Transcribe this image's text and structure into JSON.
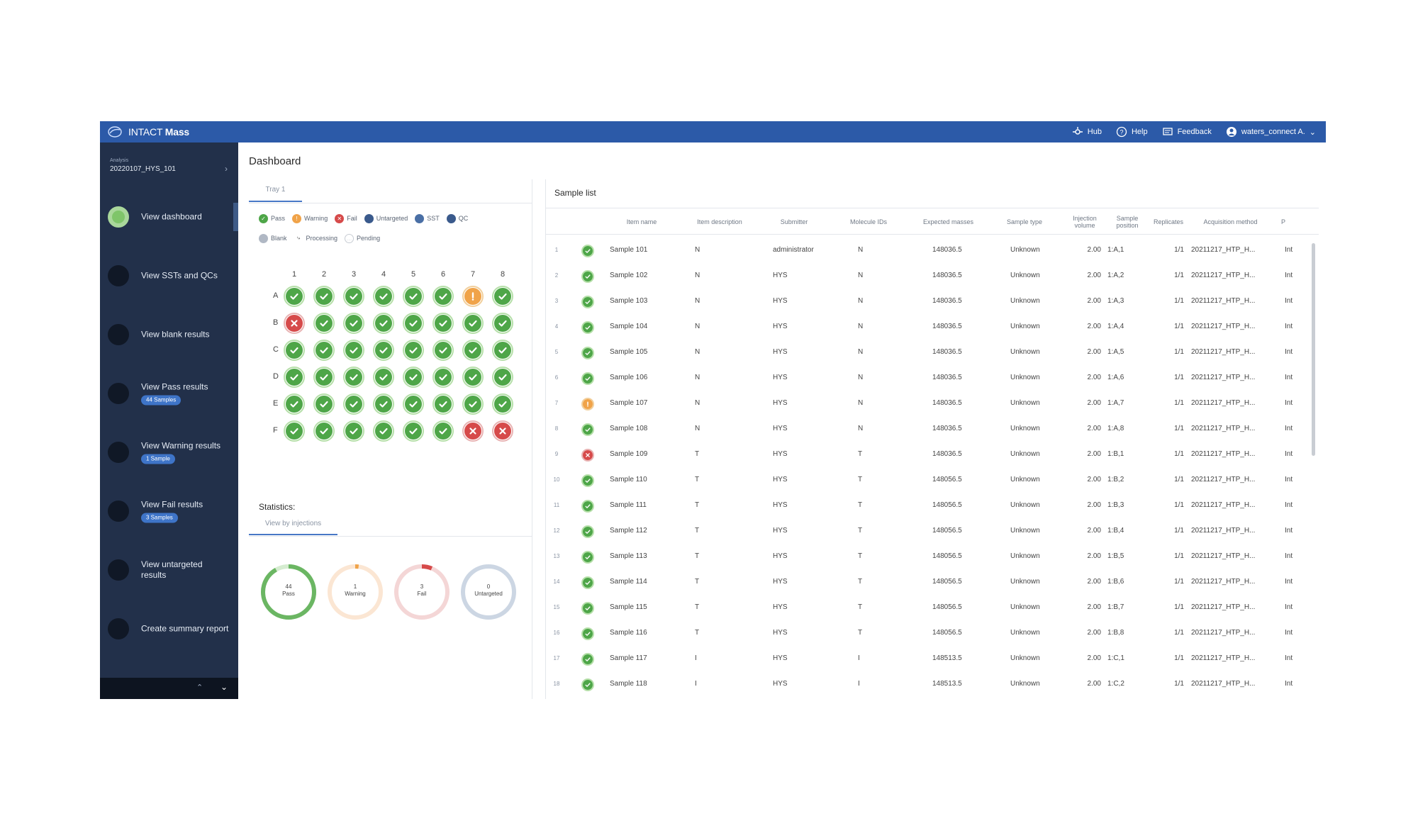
{
  "topbar": {
    "brand_light": "INTACT",
    "brand_bold": "Mass",
    "hub": "Hub",
    "help": "Help",
    "feedback": "Feedback",
    "user": "waters_connect A."
  },
  "sidebar": {
    "analysis_label": "Analysis",
    "analysis_name": "20220107_HYS_101",
    "items": [
      {
        "label": "View dashboard",
        "badge": ""
      },
      {
        "label": "View SSTs and QCs",
        "badge": ""
      },
      {
        "label": "View blank results",
        "badge": ""
      },
      {
        "label": "View Pass results",
        "badge": "44 Samples"
      },
      {
        "label": "View Warning results",
        "badge": "1 Sample"
      },
      {
        "label": "View Fail results",
        "badge": "3 Samples"
      },
      {
        "label": "View untargeted results",
        "badge": ""
      },
      {
        "label": "Create summary report",
        "badge": ""
      }
    ]
  },
  "dashboard": {
    "title": "Dashboard",
    "tray_tab": "Tray 1",
    "legend": [
      {
        "label": "Pass",
        "icon": "check-icon",
        "color": "#4ea648"
      },
      {
        "label": "Warning",
        "icon": "exclamation-icon",
        "color": "#f0a349"
      },
      {
        "label": "Fail",
        "icon": "cross-icon",
        "color": "#d64a4a"
      },
      {
        "label": "Untargeted",
        "icon": "circle-icon",
        "color": "#3a5a8c"
      },
      {
        "label": "SST",
        "icon": "sst-icon",
        "color": "#4a6fa5"
      },
      {
        "label": "QC",
        "icon": "qc-icon",
        "color": "#3a5a8c"
      },
      {
        "label": "Blank",
        "icon": "blank-icon",
        "color": "#b0b8c4"
      },
      {
        "label": "Processing",
        "icon": "spinner-icon",
        "color": "#555555"
      },
      {
        "label": "Pending",
        "icon": "pending-icon",
        "color": "#c7ccd3"
      }
    ],
    "plate": {
      "columns": [
        "1",
        "2",
        "3",
        "4",
        "5",
        "6",
        "7",
        "8"
      ],
      "rows": [
        "A",
        "B",
        "C",
        "D",
        "E",
        "F"
      ],
      "wells": [
        [
          "pass",
          "pass",
          "pass",
          "pass",
          "pass",
          "pass",
          "warn",
          "pass"
        ],
        [
          "fail",
          "pass",
          "pass",
          "pass",
          "pass",
          "pass",
          "pass",
          "pass"
        ],
        [
          "pass",
          "pass",
          "pass",
          "pass",
          "pass",
          "pass",
          "pass",
          "pass"
        ],
        [
          "pass",
          "pass",
          "pass",
          "pass",
          "pass",
          "pass",
          "pass",
          "pass"
        ],
        [
          "pass",
          "pass",
          "pass",
          "pass",
          "pass",
          "pass",
          "pass",
          "pass"
        ],
        [
          "pass",
          "pass",
          "pass",
          "pass",
          "pass",
          "pass",
          "fail",
          "fail"
        ]
      ]
    },
    "statistics_title": "Statistics:",
    "stats_tab": "View by injections",
    "donuts": [
      {
        "count": "44",
        "label": "Pass",
        "fraction": 0.917,
        "color": "#6bb663",
        "track": "#d5ecd0"
      },
      {
        "count": "1",
        "label": "Warning",
        "fraction": 0.021,
        "color": "#f0a349",
        "track": "#fbe6d3"
      },
      {
        "count": "3",
        "label": "Fail",
        "fraction": 0.063,
        "color": "#d64a4a",
        "track": "#f4d6d6"
      },
      {
        "count": "0",
        "label": "Untargeted",
        "fraction": 0.0,
        "color": "#3a5a8c",
        "track": "#ccd6e3"
      }
    ]
  },
  "sample_list": {
    "title": "Sample list",
    "columns": [
      "",
      "",
      "Item name",
      "Item description",
      "Submitter",
      "Molecule IDs",
      "Expected masses",
      "Sample type",
      "Injection volume",
      "Sample position",
      "Replicates",
      "Acquisition method",
      "P"
    ],
    "rows": [
      {
        "n": "1",
        "status": "pass",
        "name": "Sample 101",
        "desc": "N",
        "submitter": "administrator",
        "mol": "N",
        "mass": "148036.5",
        "type": "Unknown",
        "vol": "2.00",
        "pos": "1:A,1",
        "rep": "1/1",
        "method": "20211217_HTP_H...",
        "p": "Int"
      },
      {
        "n": "2",
        "status": "pass",
        "name": "Sample 102",
        "desc": "N",
        "submitter": "HYS",
        "mol": "N",
        "mass": "148036.5",
        "type": "Unknown",
        "vol": "2.00",
        "pos": "1:A,2",
        "rep": "1/1",
        "method": "20211217_HTP_H...",
        "p": "Int"
      },
      {
        "n": "3",
        "status": "pass",
        "name": "Sample 103",
        "desc": "N",
        "submitter": "HYS",
        "mol": "N",
        "mass": "148036.5",
        "type": "Unknown",
        "vol": "2.00",
        "pos": "1:A,3",
        "rep": "1/1",
        "method": "20211217_HTP_H...",
        "p": "Int"
      },
      {
        "n": "4",
        "status": "pass",
        "name": "Sample 104",
        "desc": "N",
        "submitter": "HYS",
        "mol": "N",
        "mass": "148036.5",
        "type": "Unknown",
        "vol": "2.00",
        "pos": "1:A,4",
        "rep": "1/1",
        "method": "20211217_HTP_H...",
        "p": "Int"
      },
      {
        "n": "5",
        "status": "pass",
        "name": "Sample 105",
        "desc": "N",
        "submitter": "HYS",
        "mol": "N",
        "mass": "148036.5",
        "type": "Unknown",
        "vol": "2.00",
        "pos": "1:A,5",
        "rep": "1/1",
        "method": "20211217_HTP_H...",
        "p": "Int"
      },
      {
        "n": "6",
        "status": "pass",
        "name": "Sample 106",
        "desc": "N",
        "submitter": "HYS",
        "mol": "N",
        "mass": "148036.5",
        "type": "Unknown",
        "vol": "2.00",
        "pos": "1:A,6",
        "rep": "1/1",
        "method": "20211217_HTP_H...",
        "p": "Int"
      },
      {
        "n": "7",
        "status": "warn",
        "name": "Sample 107",
        "desc": "N",
        "submitter": "HYS",
        "mol": "N",
        "mass": "148036.5",
        "type": "Unknown",
        "vol": "2.00",
        "pos": "1:A,7",
        "rep": "1/1",
        "method": "20211217_HTP_H...",
        "p": "Int"
      },
      {
        "n": "8",
        "status": "pass",
        "name": "Sample 108",
        "desc": "N",
        "submitter": "HYS",
        "mol": "N",
        "mass": "148036.5",
        "type": "Unknown",
        "vol": "2.00",
        "pos": "1:A,8",
        "rep": "1/1",
        "method": "20211217_HTP_H...",
        "p": "Int"
      },
      {
        "n": "9",
        "status": "fail",
        "name": "Sample 109",
        "desc": "T",
        "submitter": "HYS",
        "mol": "T",
        "mass": "148036.5",
        "type": "Unknown",
        "vol": "2.00",
        "pos": "1:B,1",
        "rep": "1/1",
        "method": "20211217_HTP_H...",
        "p": "Int"
      },
      {
        "n": "10",
        "status": "pass",
        "name": "Sample 110",
        "desc": "T",
        "submitter": "HYS",
        "mol": "T",
        "mass": "148056.5",
        "type": "Unknown",
        "vol": "2.00",
        "pos": "1:B,2",
        "rep": "1/1",
        "method": "20211217_HTP_H...",
        "p": "Int"
      },
      {
        "n": "11",
        "status": "pass",
        "name": "Sample 111",
        "desc": "T",
        "submitter": "HYS",
        "mol": "T",
        "mass": "148056.5",
        "type": "Unknown",
        "vol": "2.00",
        "pos": "1:B,3",
        "rep": "1/1",
        "method": "20211217_HTP_H...",
        "p": "Int"
      },
      {
        "n": "12",
        "status": "pass",
        "name": "Sample 112",
        "desc": "T",
        "submitter": "HYS",
        "mol": "T",
        "mass": "148056.5",
        "type": "Unknown",
        "vol": "2.00",
        "pos": "1:B,4",
        "rep": "1/1",
        "method": "20211217_HTP_H...",
        "p": "Int"
      },
      {
        "n": "13",
        "status": "pass",
        "name": "Sample 113",
        "desc": "T",
        "submitter": "HYS",
        "mol": "T",
        "mass": "148056.5",
        "type": "Unknown",
        "vol": "2.00",
        "pos": "1:B,5",
        "rep": "1/1",
        "method": "20211217_HTP_H...",
        "p": "Int"
      },
      {
        "n": "14",
        "status": "pass",
        "name": "Sample 114",
        "desc": "T",
        "submitter": "HYS",
        "mol": "T",
        "mass": "148056.5",
        "type": "Unknown",
        "vol": "2.00",
        "pos": "1:B,6",
        "rep": "1/1",
        "method": "20211217_HTP_H...",
        "p": "Int"
      },
      {
        "n": "15",
        "status": "pass",
        "name": "Sample 115",
        "desc": "T",
        "submitter": "HYS",
        "mol": "T",
        "mass": "148056.5",
        "type": "Unknown",
        "vol": "2.00",
        "pos": "1:B,7",
        "rep": "1/1",
        "method": "20211217_HTP_H...",
        "p": "Int"
      },
      {
        "n": "16",
        "status": "pass",
        "name": "Sample 116",
        "desc": "T",
        "submitter": "HYS",
        "mol": "T",
        "mass": "148056.5",
        "type": "Unknown",
        "vol": "2.00",
        "pos": "1:B,8",
        "rep": "1/1",
        "method": "20211217_HTP_H...",
        "p": "Int"
      },
      {
        "n": "17",
        "status": "pass",
        "name": "Sample 117",
        "desc": "I",
        "submitter": "HYS",
        "mol": "I",
        "mass": "148513.5",
        "type": "Unknown",
        "vol": "2.00",
        "pos": "1:C,1",
        "rep": "1/1",
        "method": "20211217_HTP_H...",
        "p": "Int"
      },
      {
        "n": "18",
        "status": "pass",
        "name": "Sample 118",
        "desc": "I",
        "submitter": "HYS",
        "mol": "I",
        "mass": "148513.5",
        "type": "Unknown",
        "vol": "2.00",
        "pos": "1:C,2",
        "rep": "1/1",
        "method": "20211217_HTP_H...",
        "p": "Int"
      }
    ]
  }
}
